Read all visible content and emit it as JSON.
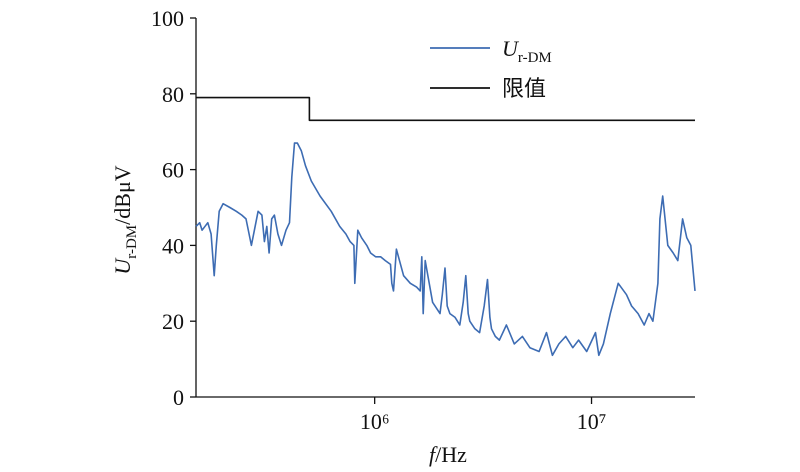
{
  "chart_data": {
    "type": "line",
    "x_label": {
      "variable": "f",
      "unit": "/Hz"
    },
    "y_label": {
      "variable": "U",
      "subscript": "r-DM",
      "unit": "/dBμV"
    },
    "xscale": "log",
    "xlim": [
      150000,
      30000000
    ],
    "xticks": [
      {
        "value": 1000000,
        "label": "10⁶"
      },
      {
        "value": 10000000,
        "label": "10⁷"
      }
    ],
    "ylim": [
      0,
      100
    ],
    "yticks": [
      0,
      20,
      40,
      60,
      80,
      100
    ],
    "legend": "top-right",
    "series": [
      {
        "name": "Ur-DM",
        "color": "#3d6cb3",
        "x": [
          150000,
          156000,
          160000,
          170000,
          176000,
          182000,
          186000,
          192000,
          200000,
          215000,
          230000,
          244000,
          255000,
          270000,
          290000,
          302000,
          310000,
          318000,
          326000,
          335000,
          345000,
          358000,
          372000,
          390000,
          405000,
          415000,
          427000,
          440000,
          459000,
          480000,
          510000,
          560000,
          630000,
          690000,
          737000,
          770000,
          802000,
          810000,
          836000,
          870000,
          920000,
          958000,
          1010000,
          1065000,
          1120000,
          1183000,
          1200000,
          1221000,
          1260000,
          1360000,
          1460000,
          1560000,
          1622000,
          1650000,
          1674000,
          1710000,
          1850000,
          2001000,
          2050000,
          2110000,
          2160000,
          2223000,
          2350000,
          2470000,
          2560000,
          2631000,
          2700000,
          2745000,
          2900000,
          3048000,
          3200000,
          3315000,
          3400000,
          3458000,
          3600000,
          3761000,
          4050000,
          4404000,
          4800000,
          5200000,
          5728000,
          6200000,
          6600000,
          7069000,
          7600000,
          8200000,
          8721000,
          9500000,
          10430000,
          10800000,
          11340000,
          12200000,
          13280000,
          14500000,
          15300000,
          16390000,
          17500000,
          18400000,
          19190000,
          19700000,
          20230000,
          20660000,
          21300000,
          22470000,
          23800000,
          25000000,
          26310000,
          27500000,
          28700000,
          30000000
        ],
        "values": [
          45,
          46,
          44,
          46,
          43,
          32,
          40,
          49,
          51,
          50,
          49,
          48,
          47,
          40,
          49,
          48,
          41,
          45,
          38,
          47,
          48,
          43,
          40,
          44,
          46,
          58,
          67,
          67,
          65,
          61,
          57,
          53,
          49,
          45,
          43,
          41,
          40,
          30,
          44,
          42,
          40,
          38,
          37,
          37,
          36,
          35,
          30,
          28,
          39,
          32,
          30,
          29,
          28,
          37,
          22,
          36,
          25,
          22,
          27,
          34,
          24,
          22,
          21,
          19,
          25,
          32,
          22,
          20,
          18,
          17,
          24,
          31,
          21,
          18,
          16,
          15,
          19,
          14,
          16,
          13,
          12,
          17,
          11,
          14,
          16,
          13,
          15,
          12,
          17,
          11,
          14,
          22,
          30,
          27,
          24,
          22,
          19,
          22,
          20,
          25,
          30,
          47,
          53,
          40,
          38,
          36,
          47,
          42,
          40,
          28
        ]
      },
      {
        "name": "限值",
        "color": "#111111",
        "x": [
          150000,
          500000,
          500000,
          30000000
        ],
        "values": [
          79,
          79,
          73,
          73
        ]
      }
    ]
  }
}
